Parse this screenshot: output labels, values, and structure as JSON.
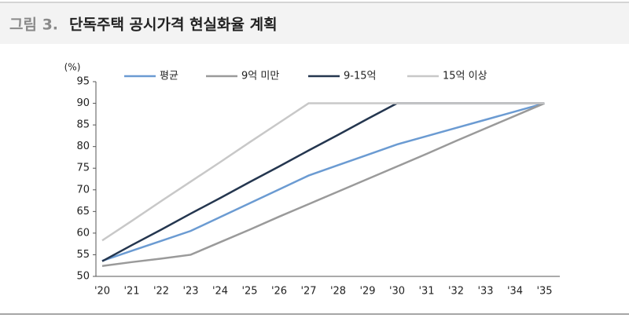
{
  "chart_data": {
    "type": "line",
    "figure_label": "그림 3.",
    "title": "단독주택 공시가격 현실화율 계획",
    "y_unit": "(%)",
    "categories": [
      "'20",
      "'21",
      "'22",
      "'23",
      "'24",
      "'25",
      "'26",
      "'27",
      "'28",
      "'29",
      "'30",
      "'31",
      "'32",
      "'33",
      "'34",
      "'35"
    ],
    "series": [
      {
        "name": "평균",
        "color": "#6b9bd2",
        "values": [
          53.6,
          55.9,
          58.2,
          60.5,
          63.7,
          66.9,
          70.1,
          73.3,
          75.7,
          78.1,
          80.5,
          82.4,
          84.3,
          86.2,
          88.1,
          90
        ]
      },
      {
        "name": "9억 미만",
        "color": "#9a9a9a",
        "values": [
          52.4,
          53.3,
          54.1,
          55.0,
          57.9,
          60.8,
          63.8,
          66.7,
          69.6,
          72.5,
          75.4,
          78.3,
          81.3,
          84.2,
          87.1,
          90
        ]
      },
      {
        "name": "9-15억",
        "color": "#24364f",
        "values": [
          53.5,
          57.2,
          60.8,
          64.5,
          68.1,
          71.8,
          75.4,
          79.1,
          82.7,
          86.4,
          90,
          90,
          90,
          90,
          90,
          90
        ]
      },
      {
        "name": "15억 이상",
        "color": "#c8c8c8",
        "values": [
          58.3,
          62.8,
          67.4,
          71.9,
          76.4,
          81.0,
          85.5,
          90,
          90,
          90,
          90,
          90,
          90,
          90,
          90,
          90
        ]
      }
    ],
    "ylim": [
      50,
      95
    ],
    "yticks": [
      50,
      55,
      60,
      65,
      70,
      75,
      80,
      85,
      90,
      95
    ]
  }
}
